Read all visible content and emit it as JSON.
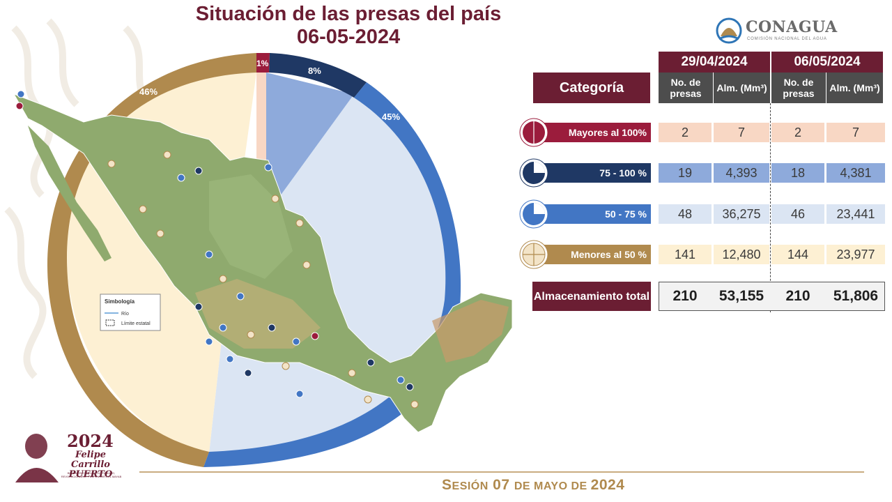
{
  "title": {
    "line1": "Situación de las presas del país",
    "line2": "06-05-2024"
  },
  "donut": [
    {
      "label": "1%",
      "color": "#9b1c3c"
    },
    {
      "label": "8%",
      "color": "#1f3864"
    },
    {
      "label": "45%",
      "color": "#4276c4"
    },
    {
      "label": "46%",
      "color": "#b08a4e"
    }
  ],
  "legend": {
    "title": "Simbología",
    "items": [
      "Río",
      "Límite estatal"
    ]
  },
  "logo": {
    "name": "CONAGUA",
    "subtitle": "COMISIÓN NACIONAL DEL AGUA"
  },
  "table": {
    "category_header": "Categoría",
    "dates": [
      "29/04/2024",
      "06/05/2024"
    ],
    "subheaders": [
      "No. de presas",
      "Alm. (Mm³)",
      "No. de presas",
      "Alm. (Mm³)"
    ],
    "rows": [
      {
        "label": "Mayores al 100%",
        "color": "#9b1c3c",
        "cell_bg": "#f8d7c4",
        "values": [
          "2",
          "7",
          "2",
          "7"
        ],
        "icon": "pie-full-icon"
      },
      {
        "label": "75 - 100 %",
        "color": "#1f3864",
        "cell_bg": "#8eaadb",
        "values": [
          "19",
          "4,393",
          "18",
          "4,381"
        ],
        "icon": "pie-three-quarter-icon"
      },
      {
        "label": "50 - 75 %",
        "color": "#4276c4",
        "cell_bg": "#dbe5f3",
        "values": [
          "48",
          "36,275",
          "46",
          "23,441"
        ],
        "icon": "pie-half-icon"
      },
      {
        "label": "Menores al 50 %",
        "color": "#b08a4e",
        "cell_bg": "#fdf0d3",
        "values": [
          "141",
          "12,480",
          "144",
          "23,977"
        ],
        "icon": "pie-quarter-icon"
      }
    ],
    "total": {
      "label": "Almacenamiento total",
      "values": [
        "210",
        "53,155",
        "210",
        "51,806"
      ]
    }
  },
  "emblem": {
    "year": "2024",
    "name": "Felipe Carrillo PUERTO",
    "subtitle": "BENEMÉRITO DEL PROLETARIADO, REVOLUCIONARIO Y DEFENSOR DEL MAYAB"
  },
  "footer": {
    "prefix": "S",
    "prefix_small": "ESIÓN",
    "number": " 07 ",
    "de1": "DE ",
    "month": "MAYO",
    "de2": " DE ",
    "year": "2024"
  }
}
